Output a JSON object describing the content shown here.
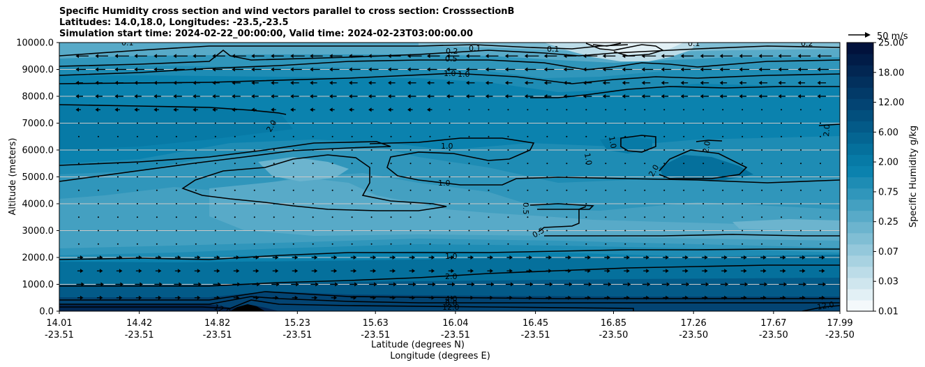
{
  "chart_data": {
    "type": "contourf",
    "title_lines": [
      "Specific Humidity cross section and wind vectors parallel to cross section: CrosssectionB",
      "Latitudes: 14.0,18.0, Longitudes: -23.5,-23.5",
      "Simulation start time: 2024-02-22_00:00:00, Valid time: 2024-02-23T03:00:00.00"
    ],
    "xlabel_lat": "Latitude (degrees N)",
    "xlabel_lon": "Longitude (degrees E)",
    "ylabel": "Altitude (meters)",
    "ylim": [
      0,
      10000
    ],
    "y_ticks": [
      "0.0",
      "1000.0",
      "2000.0",
      "3000.0",
      "4000.0",
      "5000.0",
      "6000.0",
      "7000.0",
      "8000.0",
      "9000.0",
      "10000.0"
    ],
    "x_ticks": [
      {
        "lat": "14.01",
        "lon": "-23.51",
        "frac": 0.0
      },
      {
        "lat": "14.42",
        "lon": "-23.51",
        "frac": 0.1025
      },
      {
        "lat": "14.82",
        "lon": "-23.51",
        "frac": 0.2025
      },
      {
        "lat": "15.23",
        "lon": "-23.51",
        "frac": 0.305
      },
      {
        "lat": "15.63",
        "lon": "-23.51",
        "frac": 0.405
      },
      {
        "lat": "16.04",
        "lon": "-23.51",
        "frac": 0.5075
      },
      {
        "lat": "16.45",
        "lon": "-23.51",
        "frac": 0.61
      },
      {
        "lat": "16.85",
        "lon": "-23.50",
        "frac": 0.71
      },
      {
        "lat": "17.26",
        "lon": "-23.50",
        "frac": 0.8125
      },
      {
        "lat": "17.67",
        "lon": "-23.50",
        "frac": 0.915
      },
      {
        "lat": "17.99",
        "lon": "-23.50",
        "frac": 1.0
      }
    ],
    "colorbar": {
      "label": "Specific Humidity g/kg",
      "ticks": [
        "0.01",
        "0.03",
        "0.07",
        "0.25",
        "0.75",
        "2.00",
        "6.00",
        "12.00",
        "18.00",
        "25.00"
      ],
      "colors": [
        "#f4f9fb",
        "#e2f0f5",
        "#cfe6ee",
        "#bcdce8",
        "#a8d2e1",
        "#94c8db",
        "#80bed4",
        "#6cb4ce",
        "#58aac8",
        "#44a0c1",
        "#3096bb",
        "#1e8cb4",
        "#0b82ae",
        "#077aa6",
        "#05709c",
        "#046592",
        "#035a88",
        "#024f7d",
        "#034473",
        "#023a68",
        "#02305d",
        "#022652",
        "#011c47",
        "#01123c"
      ]
    },
    "contour_levels": [
      "0.1",
      "0.2",
      "0.5",
      "1.0",
      "2.0",
      "4.0",
      "8.0",
      "12.0"
    ],
    "quiver_key": "50 m/s",
    "series": [
      {
        "name": "upper_winds_altitude_m",
        "values": [
          8000,
          8500,
          9000,
          9500
        ]
      },
      {
        "name": "lower_winds_altitude_m",
        "values": [
          500,
          1000,
          1500,
          2000
        ]
      }
    ]
  }
}
